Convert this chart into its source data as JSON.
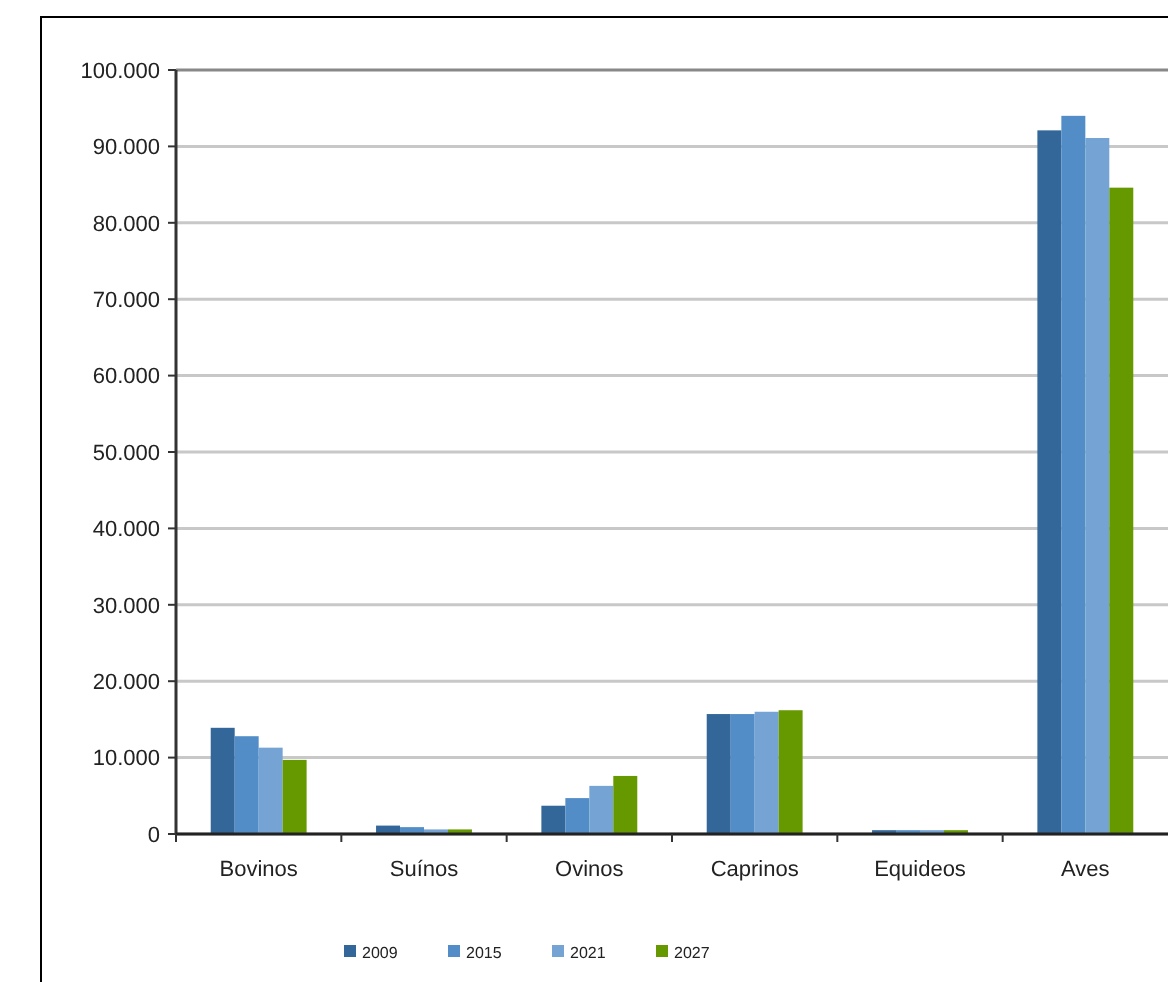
{
  "chart_data": {
    "type": "bar",
    "categories": [
      "Bovinos",
      "Suínos",
      "Ovinos",
      "Caprinos",
      "Equideos",
      "Aves"
    ],
    "series": [
      {
        "name": "2009",
        "color": "#336699",
        "values": [
          13900,
          1100,
          3700,
          15700,
          500,
          92100
        ]
      },
      {
        "name": "2015",
        "color": "#538dc8",
        "values": [
          12800,
          900,
          4700,
          15700,
          500,
          94000
        ]
      },
      {
        "name": "2021",
        "color": "#74a3d4",
        "values": [
          11300,
          600,
          6300,
          16000,
          500,
          91100
        ]
      },
      {
        "name": "2027",
        "color": "#669900",
        "values": [
          9700,
          600,
          7600,
          16200,
          500,
          84600
        ]
      }
    ],
    "ylim": [
      0,
      100000
    ],
    "yticks": [
      {
        "value": 0,
        "label": "0"
      },
      {
        "value": 10000,
        "label": "10.000"
      },
      {
        "value": 20000,
        "label": "20.000"
      },
      {
        "value": 30000,
        "label": "30.000"
      },
      {
        "value": 40000,
        "label": "40.000"
      },
      {
        "value": 50000,
        "label": "50.000"
      },
      {
        "value": 60000,
        "label": "60.000"
      },
      {
        "value": 70000,
        "label": "70.000"
      },
      {
        "value": 80000,
        "label": "80.000"
      },
      {
        "value": 90000,
        "label": "90.000"
      },
      {
        "value": 100000,
        "label": "100.000"
      }
    ],
    "grid": "y",
    "legend": "bottom"
  }
}
